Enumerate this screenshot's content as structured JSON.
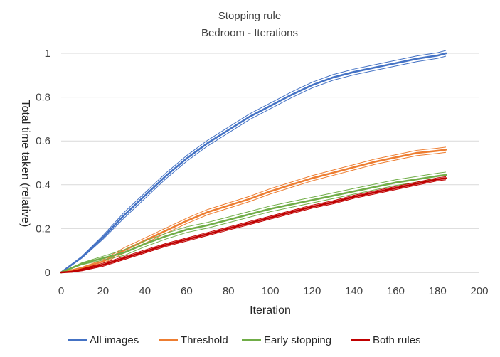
{
  "chart_data": {
    "type": "line",
    "title": "Stopping rule",
    "subtitle": "Bedroom - Iterations",
    "xlabel": "Iteration",
    "ylabel": "Total time taken (relative)",
    "xlim": [
      0,
      200
    ],
    "ylim": [
      0,
      1
    ],
    "xticks": [
      0,
      20,
      40,
      60,
      80,
      100,
      120,
      140,
      160,
      180,
      200
    ],
    "yticks": [
      0,
      0.2,
      0.4,
      0.6,
      0.8,
      1
    ],
    "ytick_labels": [
      "0",
      "0.2",
      "0.4",
      "0.6",
      "0.8",
      "1"
    ],
    "grid": true,
    "legend_position": "bottom",
    "series": [
      {
        "name": "All images",
        "color": "#4472c4",
        "x": [
          0,
          10,
          20,
          30,
          40,
          50,
          60,
          70,
          80,
          90,
          100,
          110,
          120,
          130,
          140,
          150,
          160,
          170,
          180,
          184
        ],
        "values": [
          0,
          0.07,
          0.16,
          0.26,
          0.35,
          0.44,
          0.52,
          0.59,
          0.65,
          0.71,
          0.76,
          0.81,
          0.855,
          0.89,
          0.915,
          0.935,
          0.955,
          0.975,
          0.99,
          1.0
        ],
        "band": 0.013
      },
      {
        "name": "Threshold",
        "color": "#ed7d31",
        "x": [
          0,
          10,
          20,
          30,
          40,
          50,
          60,
          70,
          80,
          90,
          100,
          110,
          120,
          130,
          140,
          150,
          160,
          170,
          180,
          184
        ],
        "values": [
          0,
          0.02,
          0.05,
          0.1,
          0.145,
          0.19,
          0.235,
          0.275,
          0.305,
          0.335,
          0.37,
          0.4,
          0.43,
          0.455,
          0.48,
          0.505,
          0.525,
          0.545,
          0.555,
          0.56
        ],
        "band": 0.012
      },
      {
        "name": "Early stopping",
        "color": "#70ad47",
        "x": [
          0,
          10,
          20,
          30,
          40,
          50,
          60,
          70,
          80,
          90,
          100,
          110,
          120,
          130,
          140,
          150,
          160,
          170,
          180,
          184
        ],
        "values": [
          0,
          0.04,
          0.065,
          0.09,
          0.13,
          0.165,
          0.195,
          0.215,
          0.24,
          0.265,
          0.29,
          0.31,
          0.33,
          0.35,
          0.37,
          0.39,
          0.41,
          0.425,
          0.44,
          0.445
        ],
        "band": 0.013
      },
      {
        "name": "Both rules",
        "color": "#c00000",
        "x": [
          0,
          5,
          10,
          20,
          30,
          40,
          50,
          60,
          70,
          80,
          90,
          100,
          110,
          120,
          130,
          140,
          150,
          160,
          170,
          180,
          184
        ],
        "values": [
          0,
          0.003,
          0.012,
          0.035,
          0.065,
          0.095,
          0.125,
          0.15,
          0.175,
          0.2,
          0.225,
          0.25,
          0.275,
          0.3,
          0.32,
          0.345,
          0.365,
          0.385,
          0.405,
          0.425,
          0.43
        ],
        "band": 0.007
      }
    ]
  }
}
